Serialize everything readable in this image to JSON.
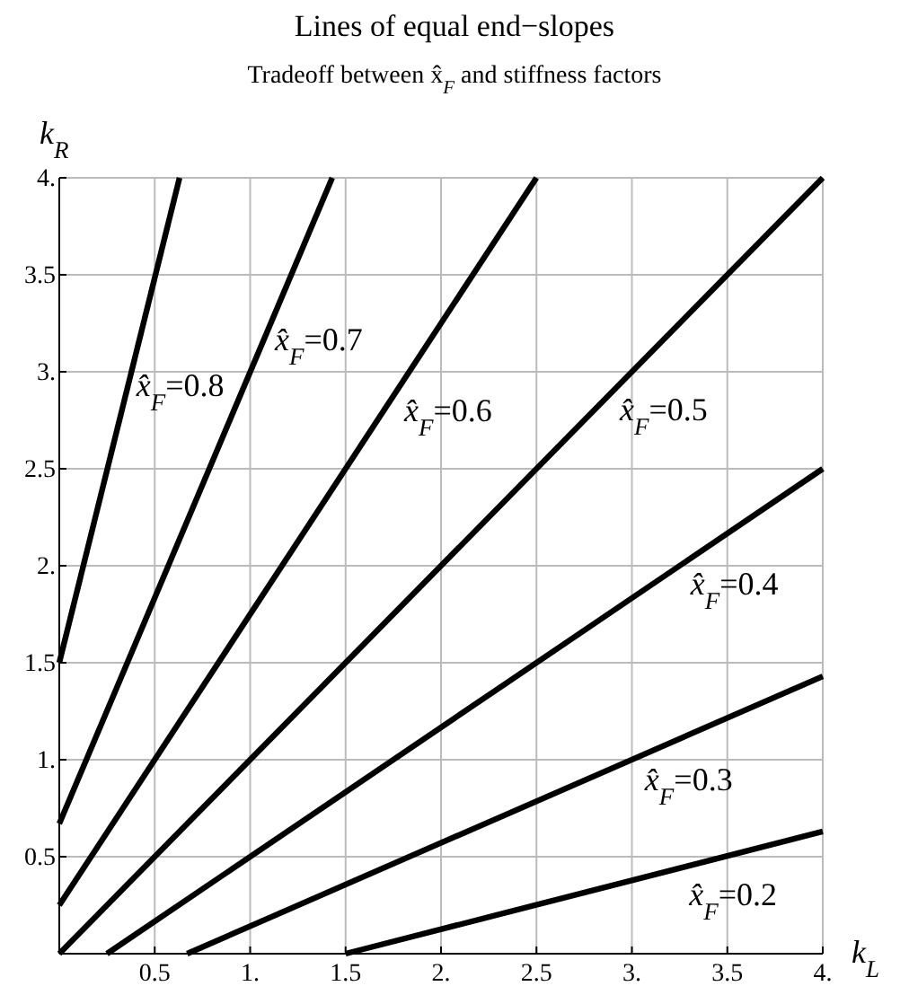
{
  "chart_data": {
    "type": "line",
    "title": "Lines of equal end−slopes",
    "subtitle": "Tradeoff between x̂$_{F}$ and stiffness factors",
    "xlabel": "k$_{L}$",
    "ylabel": "k$_{R}$",
    "xlim": [
      0,
      4
    ],
    "ylim": [
      0,
      4
    ],
    "xticks": [
      0.5,
      {
        "value": 1,
        "label": "1."
      },
      1.5,
      {
        "value": 2,
        "label": "2."
      },
      2.5,
      {
        "value": 3,
        "label": "3."
      },
      3.5,
      {
        "value": 4,
        "label": "4."
      }
    ],
    "yticks": [
      0.5,
      {
        "value": 1,
        "label": "1."
      },
      1.5,
      {
        "value": 2,
        "label": "2."
      },
      2.5,
      {
        "value": 3,
        "label": "3."
      },
      3.5,
      {
        "value": 4,
        "label": "4."
      }
    ],
    "grid": true,
    "marker": "none",
    "line_style": "solid",
    "series": [
      {
        "name": "x̂$_{F}$=0.8",
        "color": "#000000",
        "x": [
          0,
          0.63
        ],
        "values": [
          1.5,
          4
        ]
      },
      {
        "name": "x̂$_{F}$=0.7",
        "color": "#000000",
        "x": [
          0,
          1.43
        ],
        "values": [
          0.67,
          4
        ]
      },
      {
        "name": "x̂$_{F}$=0.6",
        "color": "#000000",
        "x": [
          0,
          2.5
        ],
        "values": [
          0.25,
          4
        ]
      },
      {
        "name": "x̂$_{F}$=0.5",
        "color": "#000000",
        "x": [
          0,
          4
        ],
        "values": [
          0,
          4
        ]
      },
      {
        "name": "x̂$_{F}$=0.4",
        "color": "#000000",
        "x": [
          0.25,
          4
        ],
        "values": [
          0,
          2.5
        ]
      },
      {
        "name": "x̂$_{F}$=0.3",
        "color": "#000000",
        "x": [
          0.67,
          4
        ],
        "values": [
          0,
          1.43
        ]
      },
      {
        "name": "x̂$_{F}$=0.2",
        "color": "#000000",
        "x": [
          1.5,
          4
        ],
        "values": [
          0,
          0.63
        ]
      }
    ]
  }
}
